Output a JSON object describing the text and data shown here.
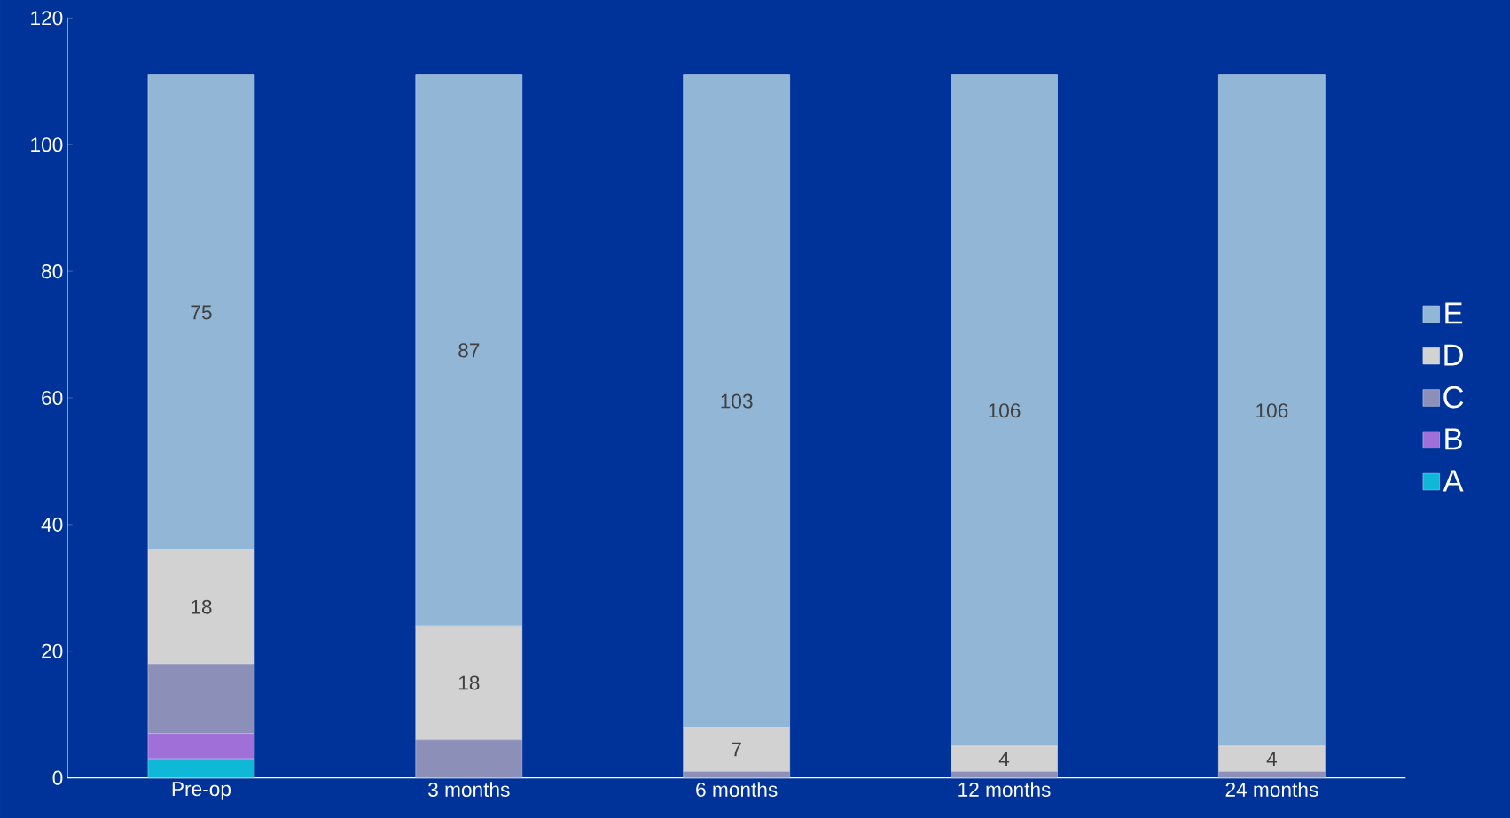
{
  "chart_data": {
    "type": "bar",
    "stacked": true,
    "categories": [
      "Pre-op",
      "3 months",
      "6 months",
      "12 months",
      "24 months"
    ],
    "series": [
      {
        "name": "A",
        "color": "#10b8d8",
        "values": [
          3,
          0,
          0,
          0,
          0
        ],
        "value_labels": [
          null,
          null,
          null,
          null,
          null
        ]
      },
      {
        "name": "B",
        "color": "#a070d8",
        "values": [
          4,
          0,
          0,
          0,
          0
        ],
        "value_labels": [
          null,
          null,
          null,
          null,
          null
        ]
      },
      {
        "name": "C",
        "color": "#8c90b8",
        "values": [
          11,
          6,
          1,
          1,
          1
        ],
        "value_labels": [
          null,
          null,
          null,
          null,
          null
        ]
      },
      {
        "name": "D",
        "color": "#d2d2d2",
        "values": [
          18,
          18,
          7,
          4,
          4
        ],
        "value_labels": [
          "18",
          "18",
          "7",
          "4",
          "4"
        ]
      },
      {
        "name": "E",
        "color": "#92b6d6",
        "values": [
          75,
          87,
          103,
          106,
          106
        ],
        "value_labels": [
          "75",
          "87",
          "103",
          "106",
          "106"
        ]
      }
    ],
    "ylim": [
      0,
      120
    ],
    "yticks": [
      0,
      20,
      40,
      60,
      80,
      100,
      120
    ],
    "grid": false,
    "legend": "right"
  }
}
